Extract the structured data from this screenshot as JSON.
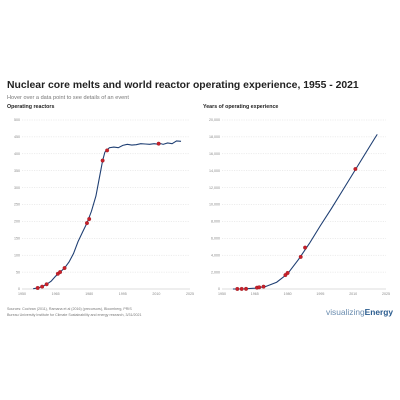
{
  "header": {
    "title": "Nuclear core melts and world reactor operating experience, 1955 - 2021",
    "subtitle": "Hover over a data point to see details of an event"
  },
  "footer": {
    "source_line1": "Sources: Cochran (2011), Ramana et al (2016) (precursors), Bloomberg, PRIS",
    "source_line2": "Bureau University Institute for Climate Sustainability and energy research, 3/31/2021"
  },
  "logo": {
    "part1": "visualizing",
    "part2": "Energy"
  },
  "colors": {
    "line": "#1f3f73",
    "marker": "#c8202a",
    "grid": "#dadada"
  },
  "chart_data": [
    {
      "type": "line",
      "title": "Operating reactors",
      "xlabel": "",
      "ylabel": "",
      "xlim": [
        1950,
        2025
      ],
      "ylim": [
        0,
        500
      ],
      "xticks": [
        1950,
        1965,
        1980,
        1995,
        2010,
        2025
      ],
      "yticks": [
        0,
        50,
        100,
        150,
        200,
        250,
        300,
        350,
        400,
        450,
        500
      ],
      "grid": true,
      "legend": "none",
      "series": [
        {
          "x": [
            1955,
            1957,
            1959,
            1961,
            1963,
            1965,
            1967,
            1969,
            1971,
            1973,
            1975,
            1977,
            1979,
            1981,
            1983,
            1985,
            1986,
            1987,
            1989,
            1991,
            1993,
            1995,
            1997,
            1999,
            2001,
            2003,
            2005,
            2007,
            2009,
            2011,
            2012,
            2013,
            2015,
            2017,
            2019,
            2021
          ],
          "values": [
            1,
            3,
            7,
            14,
            23,
            38,
            50,
            62,
            80,
            105,
            140,
            168,
            195,
            230,
            275,
            345,
            380,
            405,
            418,
            420,
            418,
            425,
            428,
            426,
            427,
            430,
            429,
            428,
            430,
            428,
            430,
            428,
            432,
            430,
            438,
            437
          ]
        }
      ],
      "events": {
        "x": [
          1957,
          1959,
          1961,
          1966,
          1967,
          1969,
          1979,
          1980,
          1986,
          1988,
          2011
        ],
        "values": [
          3,
          7,
          14,
          45,
          50,
          62,
          195,
          207,
          380,
          410,
          430
        ]
      }
    },
    {
      "type": "line",
      "title": "Years of operating experience",
      "xlabel": "",
      "ylabel": "",
      "xlim": [
        1950,
        2025
      ],
      "ylim": [
        0,
        20000
      ],
      "xticks": [
        1950,
        1965,
        1980,
        1995,
        2010,
        2025
      ],
      "yticks": [
        0,
        2000,
        4000,
        6000,
        8000,
        10000,
        12000,
        14000,
        16000,
        18000,
        20000
      ],
      "ytick_labels": [
        "0",
        "2,000",
        "4,000",
        "6,000",
        "8,000",
        "10,000",
        "12,000",
        "14,000",
        "16,000",
        "18,000",
        "20,000"
      ],
      "grid": true,
      "legend": "none",
      "series": [
        {
          "x": [
            1955,
            1960,
            1965,
            1970,
            1975,
            1980,
            1985,
            1990,
            1995,
            2000,
            2005,
            2010,
            2015,
            2020,
            2021
          ],
          "values": [
            0,
            15,
            100,
            300,
            800,
            1800,
            3500,
            5400,
            7500,
            9500,
            11600,
            13700,
            15800,
            17900,
            18300
          ]
        }
      ],
      "events": {
        "x": [
          1957,
          1959,
          1961,
          1966,
          1967,
          1969,
          1979,
          1980,
          1986,
          1988,
          2011
        ],
        "values": [
          5,
          10,
          20,
          160,
          200,
          280,
          1650,
          1900,
          3800,
          4900,
          14200
        ]
      }
    }
  ]
}
